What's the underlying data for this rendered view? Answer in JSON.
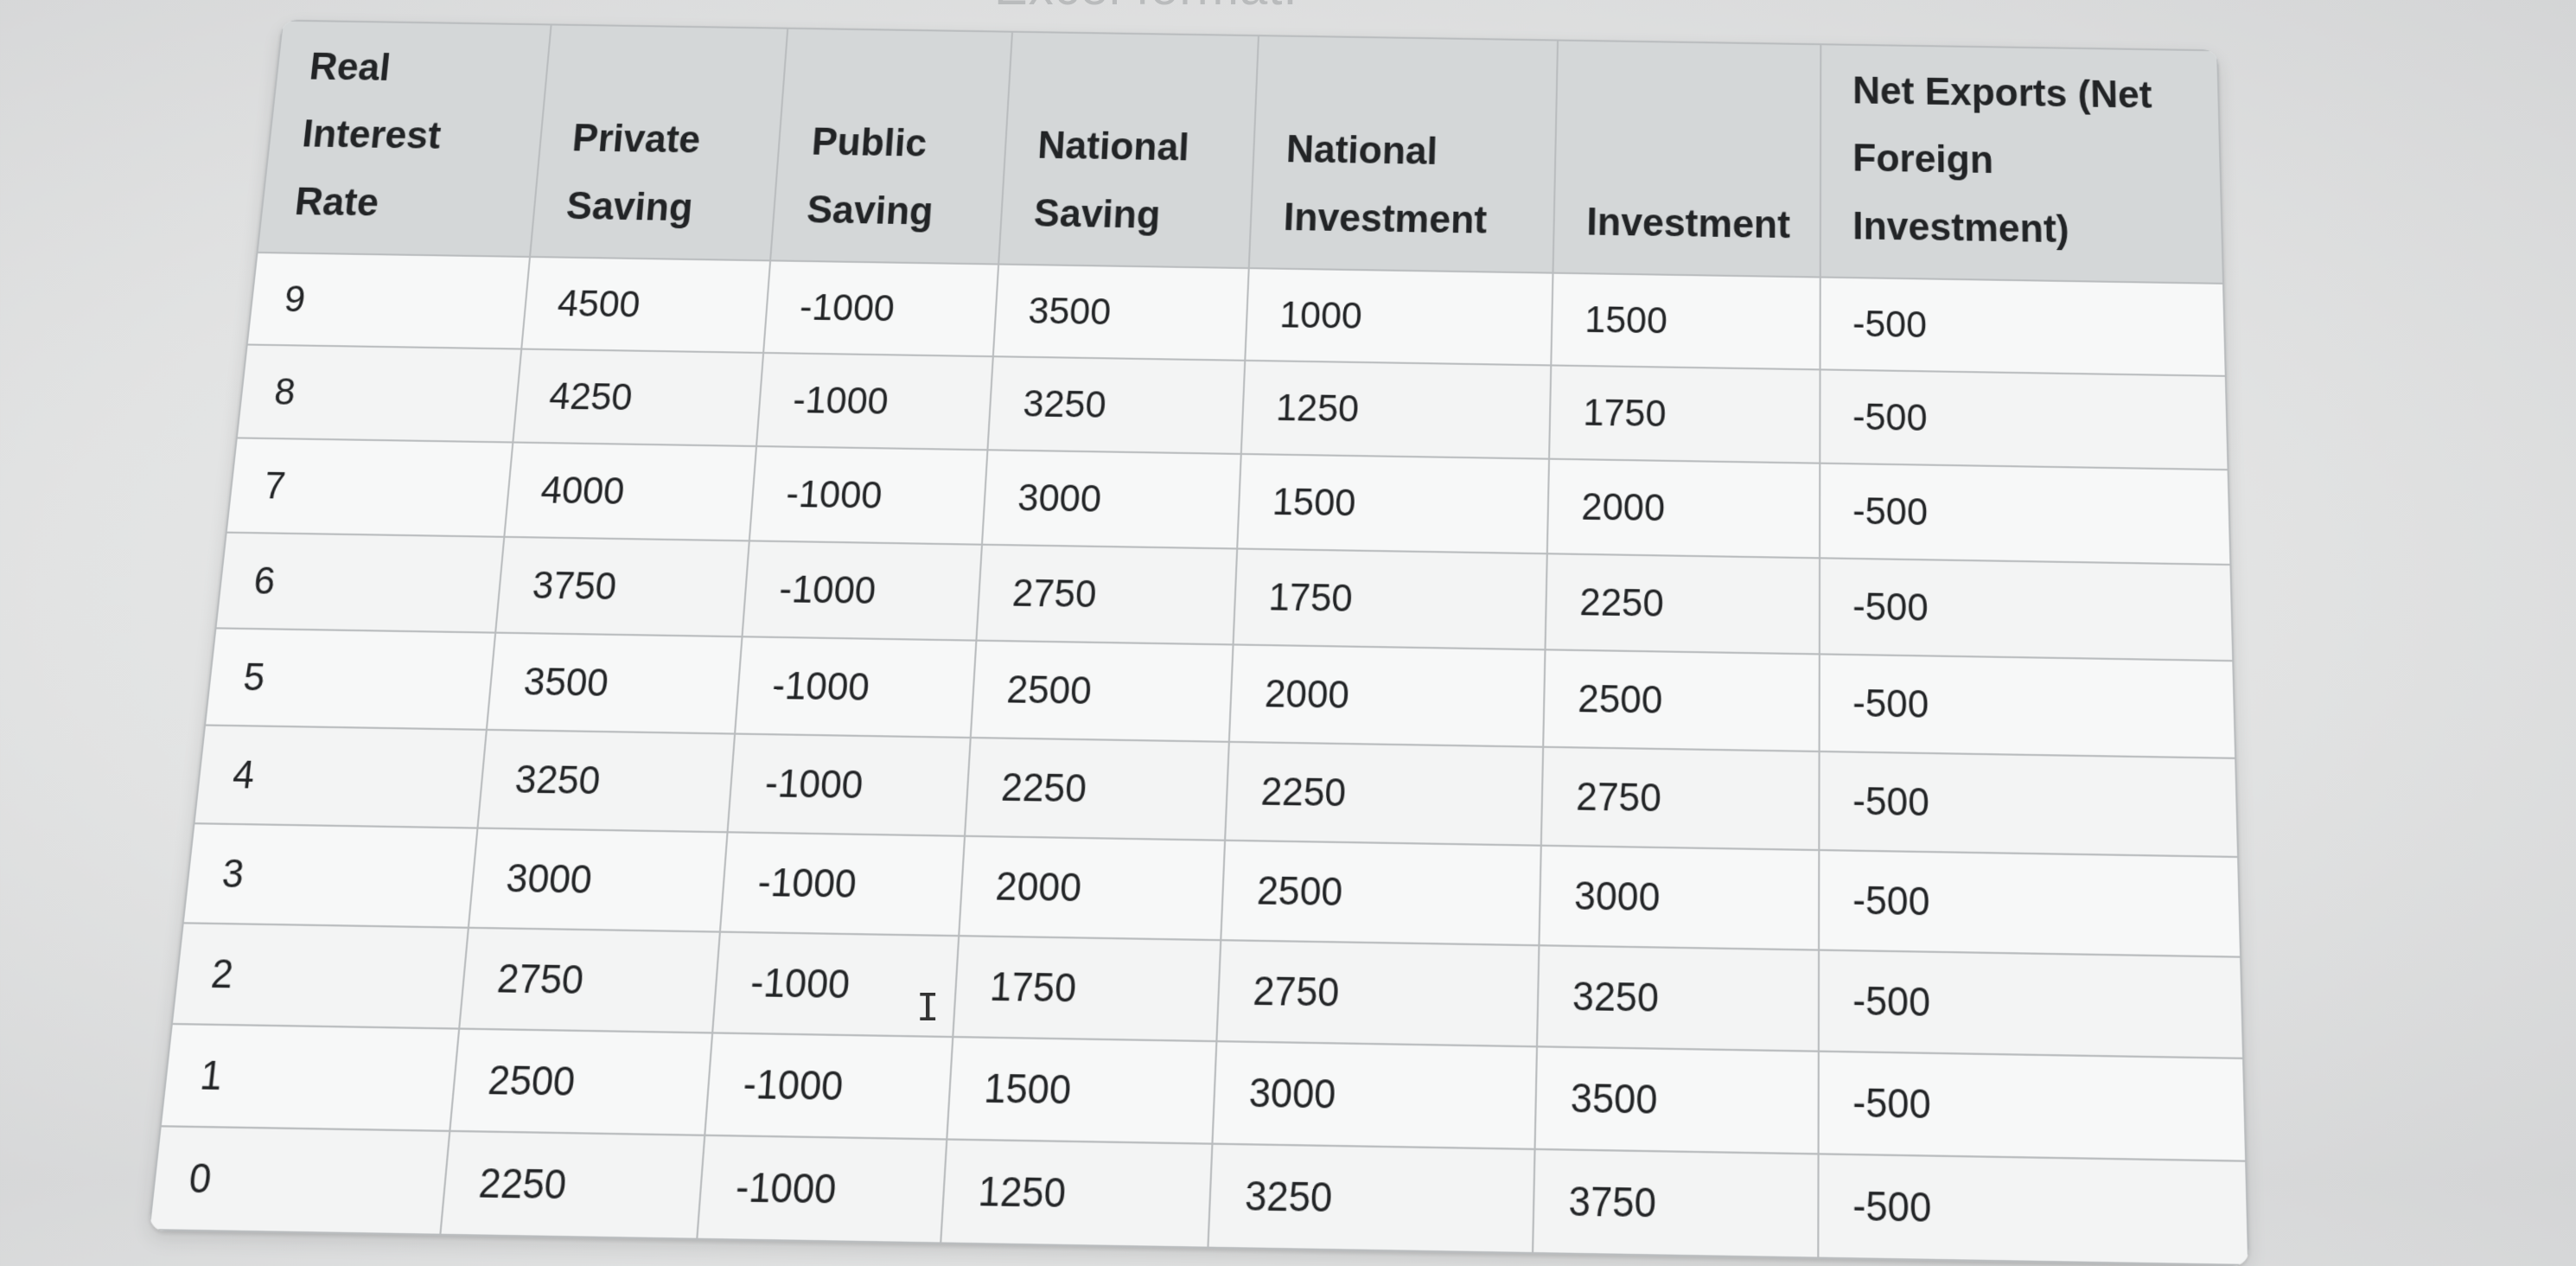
{
  "header_cutoff_text": "Excel format.",
  "table": {
    "columns": [
      "Real Interest Rate",
      "Private Saving",
      "Public Saving",
      "National Saving",
      "National Investment",
      "Investment",
      "Net Exports (Net Foreign Investment)"
    ],
    "rows": [
      [
        "9",
        "4500",
        "-1000",
        "3500",
        "1000",
        "1500",
        "-500"
      ],
      [
        "8",
        "4250",
        "-1000",
        "3250",
        "1250",
        "1750",
        "-500"
      ],
      [
        "7",
        "4000",
        "-1000",
        "3000",
        "1500",
        "2000",
        "-500"
      ],
      [
        "6",
        "3750",
        "-1000",
        "2750",
        "1750",
        "2250",
        "-500"
      ],
      [
        "5",
        "3500",
        "-1000",
        "2500",
        "2000",
        "2500",
        "-500"
      ],
      [
        "4",
        "3250",
        "-1000",
        "2250",
        "2250",
        "2750",
        "-500"
      ],
      [
        "3",
        "3000",
        "-1000",
        "2000",
        "2500",
        "3000",
        "-500"
      ],
      [
        "2",
        "2750",
        "-1000",
        "1750",
        "2750",
        "3250",
        "-500"
      ],
      [
        "1",
        "2500",
        "-1000",
        "1500",
        "3000",
        "3500",
        "-500"
      ],
      [
        "0",
        "2250",
        "-1000",
        "1250",
        "3250",
        "3750",
        "-500"
      ]
    ]
  },
  "text_cursor_icon": "text-cursor-icon"
}
